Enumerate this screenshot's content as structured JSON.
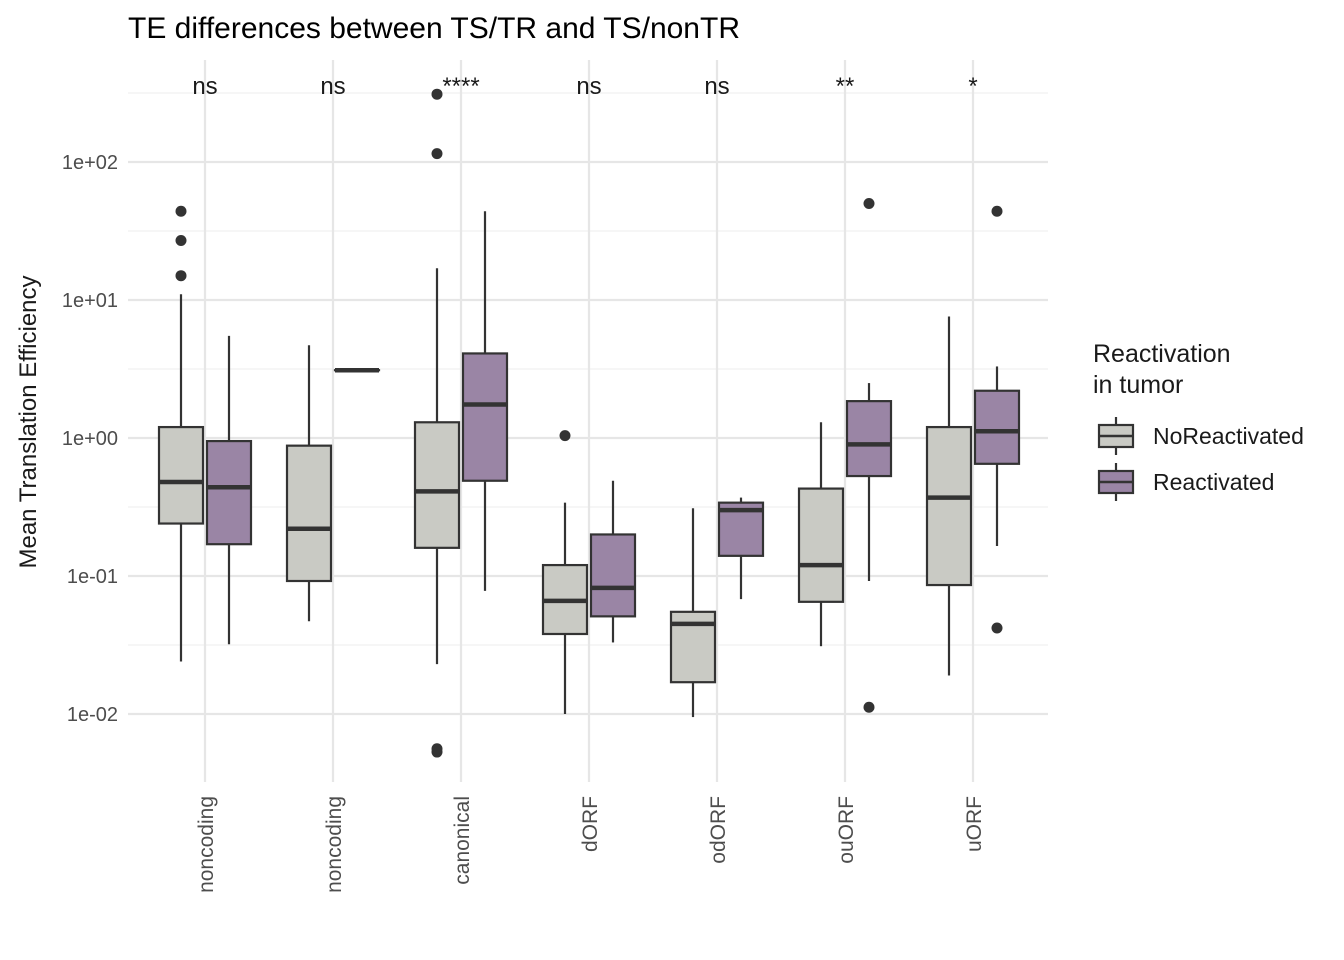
{
  "chart_data": {
    "type": "box",
    "title": "TE differences between TS/TR and TS/nonTR",
    "xlabel": "",
    "ylabel": "Mean Translation Efficiency",
    "yscale": "log10",
    "ylim": [
      0.003,
      500
    ],
    "yticks": [
      0.01,
      0.1,
      1,
      10,
      100
    ],
    "ytick_labels": [
      "1e-02",
      "1e-01",
      "1e+00",
      "1e+01",
      "1e+02"
    ],
    "grid": true,
    "categories": [
      "noncoding",
      "noncoding",
      "canonical",
      "dORF",
      "odORF",
      "ouORF",
      "uORF"
    ],
    "significance": [
      "ns",
      "ns",
      "****",
      "ns",
      "ns",
      "**",
      "*"
    ],
    "legend": {
      "title": "Reactivation\nin tumor",
      "position": "right",
      "entries": [
        {
          "name": "NoReactivated",
          "color": "#c9cac4"
        },
        {
          "name": "Reactivated",
          "color": "#9a85a5"
        }
      ]
    },
    "series": [
      {
        "name": "NoReactivated",
        "color": "#c9cac4",
        "boxes": [
          {
            "category": 0,
            "whisker_low": 0.024,
            "q1": 0.24,
            "median": 0.48,
            "q3": 1.2,
            "whisker_high": 11,
            "outliers": [
              15,
              27,
              44
            ]
          },
          {
            "category": 1,
            "whisker_low": 0.047,
            "q1": 0.092,
            "median": 0.22,
            "q3": 0.88,
            "whisker_high": 4.7,
            "outliers": []
          },
          {
            "category": 2,
            "whisker_low": 0.023,
            "q1": 0.16,
            "median": 0.41,
            "q3": 1.3,
            "whisker_high": 17,
            "outliers": [
              0.0053,
              0.0056,
              115,
              310
            ]
          },
          {
            "category": 3,
            "whisker_low": 0.01,
            "q1": 0.038,
            "median": 0.066,
            "q3": 0.12,
            "whisker_high": 0.34,
            "outliers": [
              1.04
            ]
          },
          {
            "category": 4,
            "whisker_low": 0.0095,
            "q1": 0.017,
            "median": 0.045,
            "q3": 0.055,
            "whisker_high": 0.31,
            "outliers": []
          },
          {
            "category": 5,
            "whisker_low": 0.031,
            "q1": 0.065,
            "median": 0.12,
            "q3": 0.43,
            "whisker_high": 1.3,
            "outliers": []
          },
          {
            "category": 6,
            "whisker_low": 0.019,
            "q1": 0.086,
            "median": 0.37,
            "q3": 1.2,
            "whisker_high": 7.6,
            "outliers": []
          }
        ]
      },
      {
        "name": "Reactivated",
        "color": "#9a85a5",
        "boxes": [
          {
            "category": 0,
            "whisker_low": 0.032,
            "q1": 0.17,
            "median": 0.44,
            "q3": 0.95,
            "whisker_high": 5.5,
            "outliers": []
          },
          {
            "category": 1,
            "whisker_low": 3.1,
            "q1": 3.1,
            "median": 3.1,
            "q3": 3.1,
            "whisker_high": 3.1,
            "outliers": []
          },
          {
            "category": 2,
            "whisker_low": 0.078,
            "q1": 0.49,
            "median": 1.75,
            "q3": 4.1,
            "whisker_high": 44,
            "outliers": []
          },
          {
            "category": 3,
            "whisker_low": 0.033,
            "q1": 0.051,
            "median": 0.082,
            "q3": 0.2,
            "whisker_high": 0.49,
            "outliers": []
          },
          {
            "category": 4,
            "whisker_low": 0.068,
            "q1": 0.14,
            "median": 0.3,
            "q3": 0.34,
            "whisker_high": 0.37,
            "outliers": []
          },
          {
            "category": 5,
            "whisker_low": 0.092,
            "q1": 0.53,
            "median": 0.9,
            "q3": 1.85,
            "whisker_high": 2.5,
            "outliers": [
              0.0112,
              50
            ]
          },
          {
            "category": 6,
            "whisker_low": 0.165,
            "q1": 0.65,
            "median": 1.12,
            "q3": 2.2,
            "whisker_high": 3.3,
            "outliers": [
              0.042,
              44
            ]
          }
        ]
      }
    ]
  }
}
